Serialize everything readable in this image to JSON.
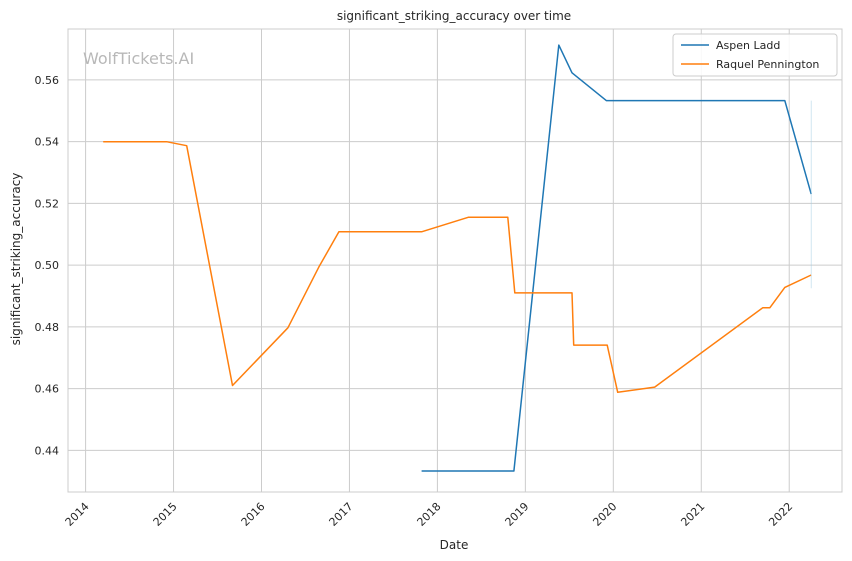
{
  "chart_data": {
    "type": "line",
    "title": "significant_striking_accuracy over time",
    "xlabel": "Date",
    "ylabel": "significant_striking_accuracy",
    "watermark": "WolfTickets.AI",
    "xlim": [
      2013.8,
      2022.6
    ],
    "ylim": [
      0.4265,
      0.5765
    ],
    "x_ticks": [
      2014,
      2015,
      2016,
      2017,
      2018,
      2019,
      2020,
      2021,
      2022
    ],
    "x_tick_labels": [
      "2014",
      "2015",
      "2016",
      "2017",
      "2018",
      "2019",
      "2020",
      "2021",
      "2022"
    ],
    "y_ticks": [
      0.44,
      0.46,
      0.48,
      0.5,
      0.52,
      0.54,
      0.56
    ],
    "y_tick_labels": [
      "0.44",
      "0.46",
      "0.48",
      "0.50",
      "0.52",
      "0.54",
      "0.56"
    ],
    "grid": true,
    "legend_position": "top-right",
    "series": [
      {
        "name": "Aspen Ladd",
        "color": "#1f77b4",
        "x": [
          2017.82,
          2018.87,
          2019.38,
          2019.53,
          2019.92,
          2021.7,
          2021.95,
          2022.25
        ],
        "y": [
          0.4333,
          0.4333,
          0.5713,
          0.5623,
          0.5533,
          0.5533,
          0.5533,
          0.523
        ]
      },
      {
        "name": "Raquel Pennington",
        "color": "#ff7f0e",
        "x": [
          2014.2,
          2014.92,
          2015.15,
          2015.67,
          2016.3,
          2016.65,
          2016.88,
          2017.82,
          2018.35,
          2018.8,
          2018.88,
          2019.53,
          2019.55,
          2019.93,
          2020.05,
          2020.47,
          2021.7,
          2021.78,
          2021.95,
          2022.25
        ],
        "y": [
          0.54,
          0.54,
          0.5387,
          0.461,
          0.4797,
          0.4993,
          0.5108,
          0.5108,
          0.5155,
          0.5155,
          0.491,
          0.491,
          0.4741,
          0.4741,
          0.4588,
          0.4605,
          0.4862,
          0.4862,
          0.4928,
          0.4968
        ]
      }
    ]
  }
}
